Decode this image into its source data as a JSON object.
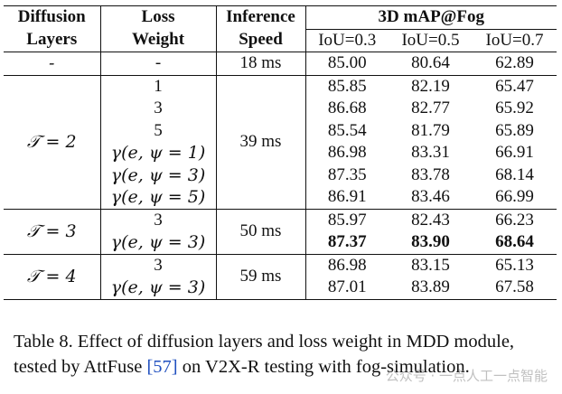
{
  "table": {
    "headers": {
      "diffusion_layers": [
        "Diffusion",
        "Layers"
      ],
      "loss_weight": [
        "Loss",
        "Weight"
      ],
      "inference_speed": [
        "Inference",
        "Speed"
      ],
      "map_group": "3D mAP@Fog",
      "iou": [
        "IoU=0.3",
        "IoU=0.5",
        "IoU=0.7"
      ]
    },
    "groups": [
      {
        "layers": "-",
        "speed": "18 ms",
        "rows": [
          {
            "loss": "-",
            "v": [
              "85.00",
              "80.64",
              "62.89"
            ],
            "bold": false
          }
        ]
      },
      {
        "layers": "𝒯 = 2",
        "speed": "39 ms",
        "rows": [
          {
            "loss": "1",
            "v": [
              "85.85",
              "82.19",
              "65.47"
            ],
            "bold": false
          },
          {
            "loss": "3",
            "v": [
              "86.68",
              "82.77",
              "65.92"
            ],
            "bold": false
          },
          {
            "loss": "5",
            "v": [
              "85.54",
              "81.79",
              "65.89"
            ],
            "bold": false
          },
          {
            "loss": "γ(e, ψ = 1)",
            "v": [
              "86.98",
              "83.31",
              "66.91"
            ],
            "bold": false
          },
          {
            "loss": "γ(e, ψ = 3)",
            "v": [
              "87.35",
              "83.78",
              "68.14"
            ],
            "bold": false
          },
          {
            "loss": "γ(e, ψ = 5)",
            "v": [
              "86.91",
              "83.46",
              "66.99"
            ],
            "bold": false
          }
        ]
      },
      {
        "layers": "𝒯 = 3",
        "speed": "50 ms",
        "rows": [
          {
            "loss": "3",
            "v": [
              "85.97",
              "82.43",
              "66.23"
            ],
            "bold": false
          },
          {
            "loss": "γ(e, ψ = 3)",
            "v": [
              "87.37",
              "83.90",
              "68.64"
            ],
            "bold": true
          }
        ]
      },
      {
        "layers": "𝒯 = 4",
        "speed": "59 ms",
        "rows": [
          {
            "loss": "3",
            "v": [
              "86.98",
              "83.15",
              "65.13"
            ],
            "bold": false
          },
          {
            "loss": "γ(e, ψ = 3)",
            "v": [
              "87.01",
              "83.89",
              "67.58"
            ],
            "bold": false
          }
        ]
      }
    ]
  },
  "caption": {
    "before": "Table 8. Effect of diffusion layers and loss weight in MDD module, tested by AttFuse ",
    "cite": "[57]",
    "after": " on V2X-R testing with fog-simulation."
  },
  "watermark": "公众号 · 一点人工一点智能"
}
